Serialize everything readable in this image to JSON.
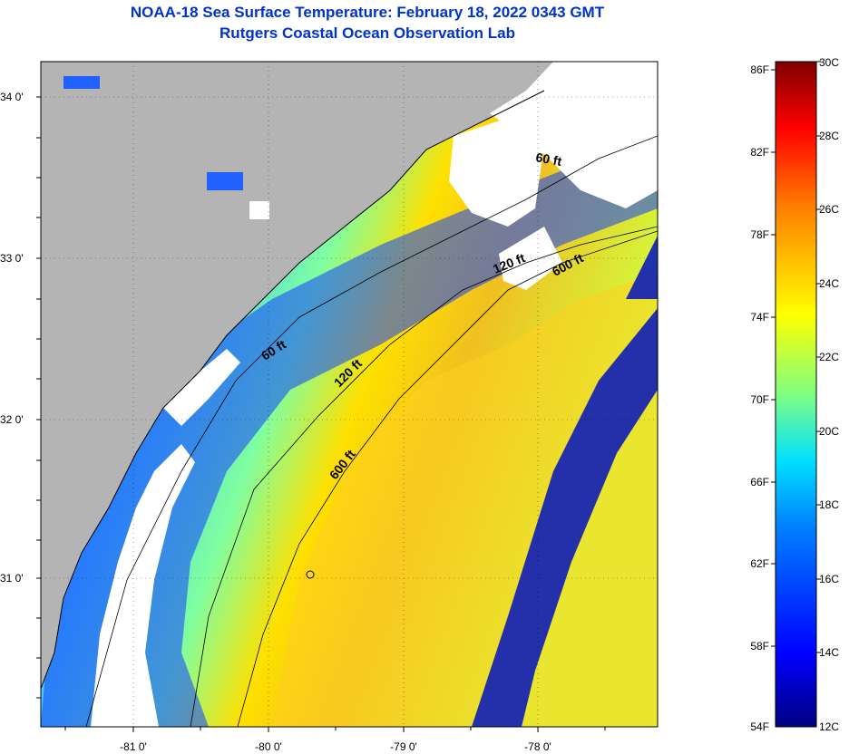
{
  "header": {
    "title": "NOAA-18 Sea Surface Temperature:  February 18, 2022 0343 GMT",
    "subtitle": "Rutgers Coastal Ocean Observation Lab"
  },
  "axes": {
    "lat_labels": [
      "34 0'",
      "33 0'",
      "32 0'",
      "31 0'"
    ],
    "lon_labels": [
      "-81 0'",
      "-80 0'",
      "-79 0'",
      "-78 0'"
    ]
  },
  "contours": {
    "labels": [
      "60 ft",
      "120 ft",
      "600 ft",
      "120 ft",
      "600 ft",
      "60 ft"
    ]
  },
  "colorbar": {
    "f_labels": [
      "86F",
      "82F",
      "78F",
      "74F",
      "70F",
      "66F",
      "62F",
      "58F",
      "54F"
    ],
    "c_labels": [
      "30C",
      "28C",
      "26C",
      "24C",
      "22C",
      "20C",
      "18C",
      "16C",
      "14C",
      "12C"
    ]
  },
  "colors": {
    "land": "#b4b4b4",
    "cloud": "#ffffff",
    "title": "#0033cc",
    "scale": [
      "#000080",
      "#0000ff",
      "#0080ff",
      "#00ffff",
      "#80ff80",
      "#ffff00",
      "#ff8000",
      "#ff0000",
      "#800000"
    ]
  }
}
